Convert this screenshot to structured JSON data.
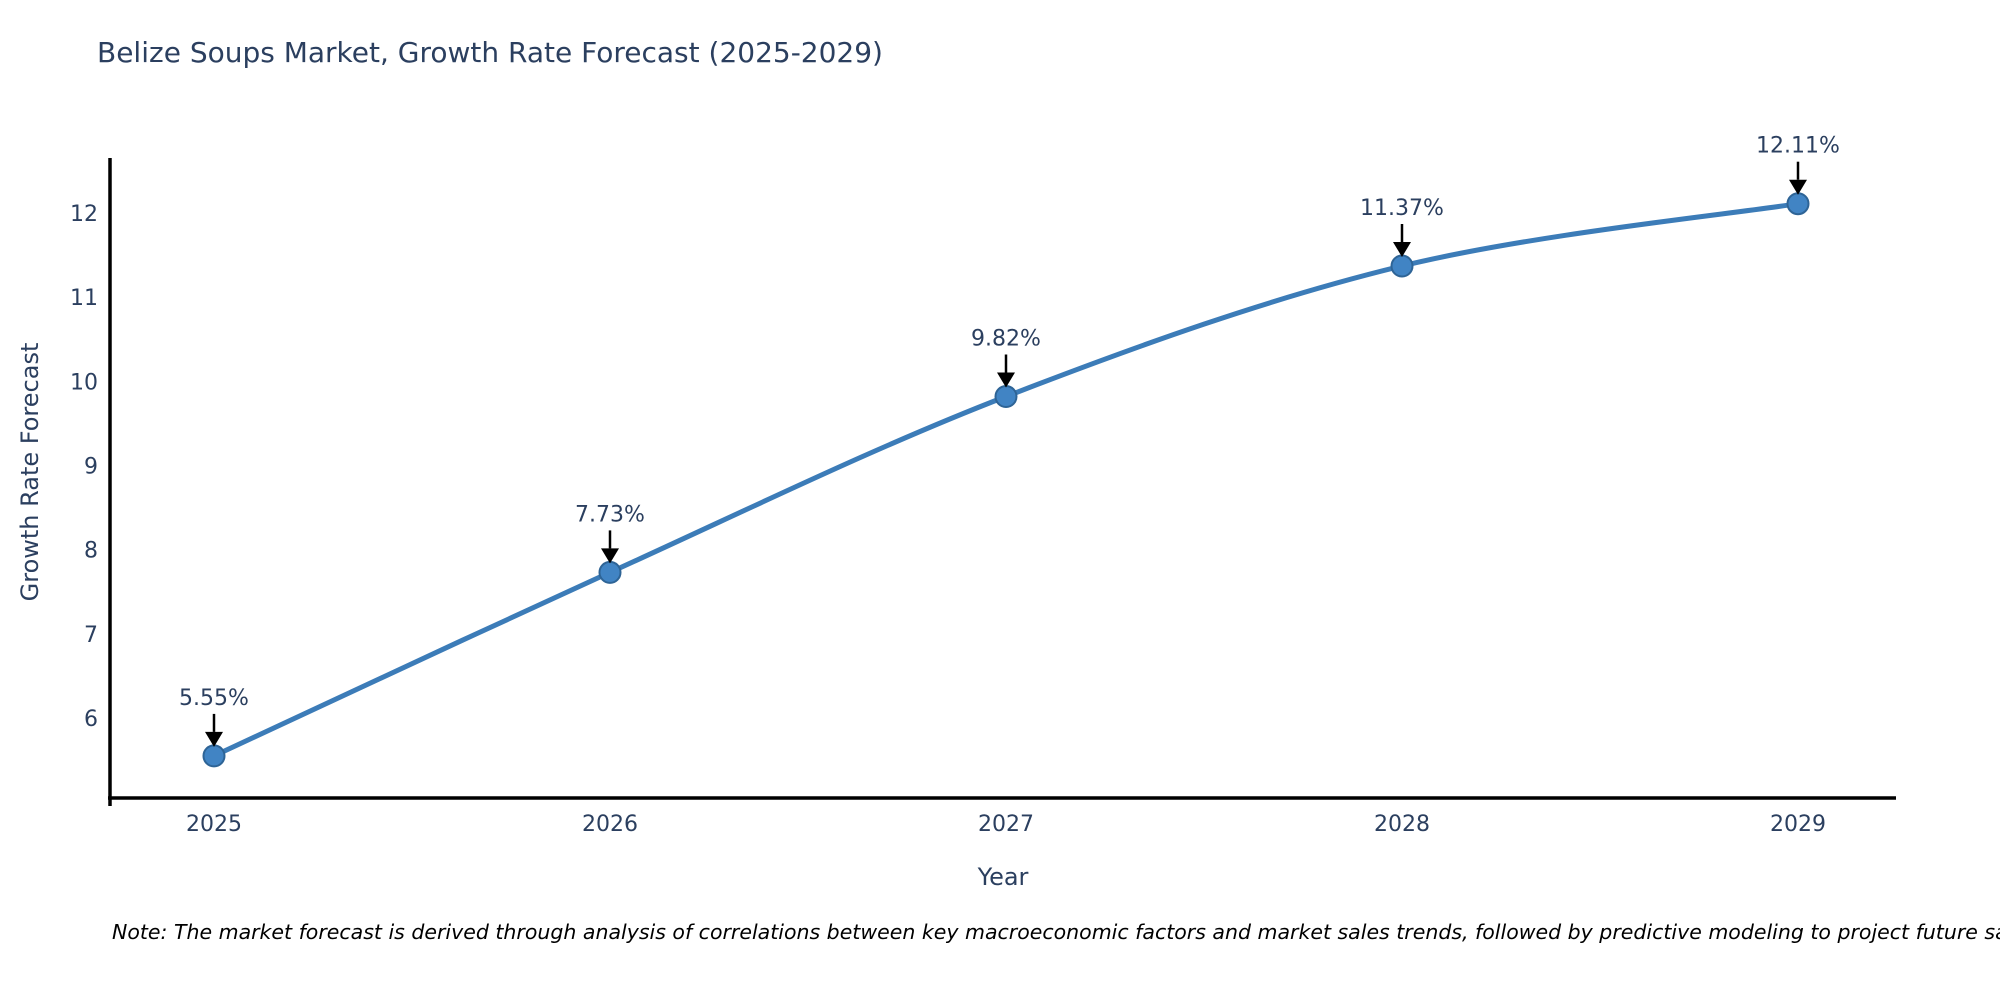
{
  "title": "Belize Soups Market, Growth Rate Forecast (2025-2029)",
  "note": "Note: The market forecast is derived through analysis of correlations between key macroeconomic factors and market sales trends, followed by predictive modeling to project future sales",
  "chart_data": {
    "type": "line",
    "title": "Belize Soups Market, Growth Rate Forecast (2025-2029)",
    "xlabel": "Year",
    "ylabel": "Growth Rate Forecast",
    "x": [
      "2025",
      "2026",
      "2027",
      "2028",
      "2029"
    ],
    "series": [
      {
        "name": "Growth Rate Forecast",
        "values": [
          5.55,
          7.73,
          9.82,
          11.37,
          12.11
        ]
      }
    ],
    "point_labels": [
      "5.55%",
      "7.73%",
      "9.82%",
      "11.37%",
      "12.11%"
    ],
    "yticks": [
      6,
      7,
      8,
      9,
      10,
      11,
      12
    ],
    "ylim": [
      5.03,
      12.65
    ],
    "grid": false,
    "legend": "none",
    "line_shape": "spline",
    "marker_style": "circle-with-down-arrow-annotation",
    "colors": {
      "line": "#3c7cb8",
      "marker_fill": "#4184c4",
      "marker_edge": "#2e6496",
      "axis_line": "#000000",
      "tick_text": "#2b3f5f",
      "annotation_text": "#2b3f5f",
      "annotation_arrow": "#000000",
      "title_text": "#2b3f5f",
      "note_text": "#000000",
      "background": "#ffffff"
    }
  }
}
